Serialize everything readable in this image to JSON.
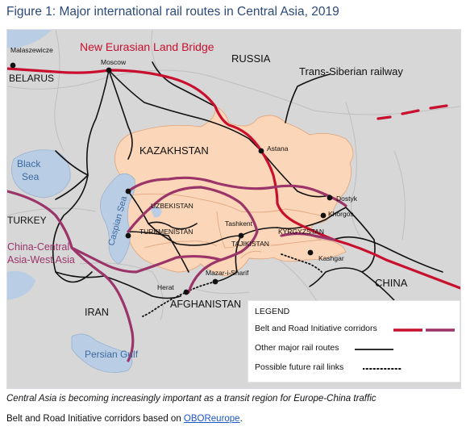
{
  "figure_title": "Figure 1: Major international rail routes in Central Asia, 2019",
  "labels": {
    "new_eurasian": "New Eurasian Land Bridge",
    "trans_siberian": "Trans-Siberian railway",
    "russia": "RUSSIA",
    "belarus": "BELARUS",
    "malaszewicze": "Malaszewicze",
    "moscow": "Moscow",
    "kazakhstan": "KAZAKHSTAN",
    "astana": "Astana",
    "black_sea_1": "Black",
    "black_sea_2": "Sea",
    "turkey": "TURKEY",
    "caspian": "Caspian Sea",
    "uzbekistan": "UZBEKISTAN",
    "turkmenistan": "TURKMENISTAN",
    "dostyk": "Dostyk",
    "khorgos": "Khorgos",
    "tashkent": "Tashkent",
    "kyrgyzstan": "KYRGYZSTAN",
    "tajikistan": "TAJIKISTAN",
    "kashgar": "Kashgar",
    "china_central_1": "China-Central",
    "china_central_2": "Asia-West Asia",
    "china": "CHINA",
    "herat": "Herat",
    "mazar": "Mazar-i-Sharif",
    "afghanistan": "AFGHANISTAN",
    "iran": "IRAN",
    "persian_gulf": "Persian Gulf"
  },
  "legend": {
    "title": "LEGEND",
    "bri": "Belt and Road Initiative corridors",
    "other": "Other major rail routes",
    "future": "Possible future rail links"
  },
  "caption": "Central Asia is becoming increasingly important as a transit region for Europe-China traffic",
  "source_prefix": "Belt and Road Initiative corridors based on ",
  "source_link": "OBOReurope",
  "source_suffix": ".",
  "colors": {
    "bri_red": "#c8102e",
    "bri_purple": "#9b3468",
    "central_asia_fill": "#fbd6b8",
    "land": "#d5d5d5",
    "water": "#b9cde4",
    "rail": "#111111"
  }
}
